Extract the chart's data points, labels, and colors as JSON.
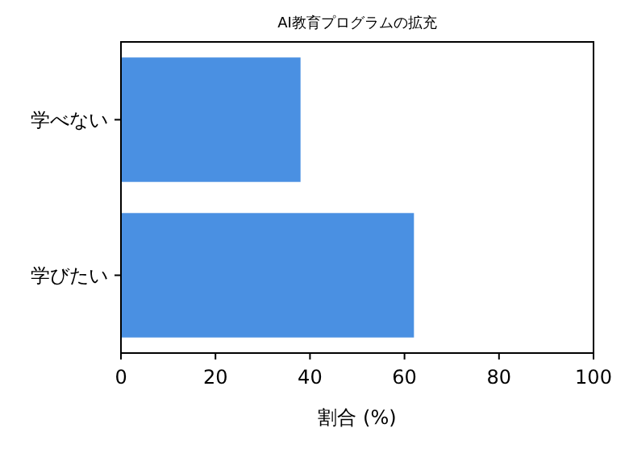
{
  "chart_data": {
    "type": "bar",
    "orientation": "horizontal",
    "title": "AI教育プログラムの拡充",
    "xlabel": "割合 (%)",
    "categories": [
      "学べない",
      "学びたい"
    ],
    "values": [
      38,
      62
    ],
    "color": "#4a90e2",
    "xlim": [
      0,
      100
    ],
    "xticks": [
      0,
      20,
      40,
      60,
      80,
      100
    ],
    "grid": false
  }
}
